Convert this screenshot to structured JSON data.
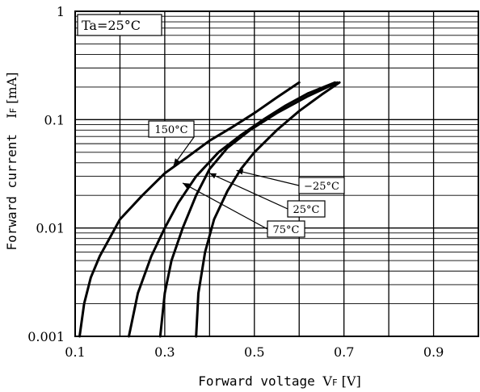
{
  "chart_data": {
    "type": "line",
    "title": "",
    "condition": "Ta=25°C",
    "xlabel": {
      "text": "Forward voltage ",
      "symbol": "V",
      "sub": "F",
      "unit": " [V]"
    },
    "ylabel": {
      "text": "Forward current  ",
      "symbol": "I",
      "sub": "F",
      "unit": " [mA]"
    },
    "xlim": [
      0.1,
      1.0
    ],
    "ylim": [
      0.001,
      1
    ],
    "yscale": "log",
    "grid": true,
    "x_ticks": [
      {
        "value": 0.1,
        "label": "0.1"
      },
      {
        "value": 0.3,
        "label": "0.3"
      },
      {
        "value": 0.5,
        "label": "0.5"
      },
      {
        "value": 0.7,
        "label": "0.7"
      },
      {
        "value": 0.9,
        "label": "0.9"
      }
    ],
    "y_ticks": [
      {
        "value": 0.001,
        "label": "0.001"
      },
      {
        "value": 0.01,
        "label": "0.01"
      },
      {
        "value": 0.1,
        "label": "0.1"
      },
      {
        "value": 1,
        "label": "1"
      }
    ],
    "series": [
      {
        "name": "150°C",
        "x": [
          0.11,
          0.12,
          0.135,
          0.155,
          0.2,
          0.25,
          0.3,
          0.35,
          0.4,
          0.45,
          0.5,
          0.55,
          0.6
        ],
        "y": [
          0.001,
          0.002,
          0.0035,
          0.0055,
          0.012,
          0.02,
          0.032,
          0.045,
          0.064,
          0.085,
          0.115,
          0.16,
          0.22
        ]
      },
      {
        "name": "75°C",
        "x": [
          0.22,
          0.24,
          0.27,
          0.3,
          0.33,
          0.37,
          0.42,
          0.47,
          0.52,
          0.57,
          0.62,
          0.68
        ],
        "y": [
          0.001,
          0.0025,
          0.0055,
          0.01,
          0.017,
          0.03,
          0.05,
          0.072,
          0.1,
          0.135,
          0.175,
          0.22
        ]
      },
      {
        "name": "25°C",
        "x": [
          0.29,
          0.3,
          0.315,
          0.34,
          0.37,
          0.4,
          0.44,
          0.49,
          0.55,
          0.62,
          0.685
        ],
        "y": [
          0.001,
          0.0025,
          0.005,
          0.01,
          0.02,
          0.035,
          0.055,
          0.08,
          0.115,
          0.165,
          0.22
        ]
      },
      {
        "name": "-25°C",
        "x": [
          0.37,
          0.375,
          0.39,
          0.41,
          0.44,
          0.47,
          0.5,
          0.55,
          0.6,
          0.65,
          0.69
        ],
        "y": [
          0.001,
          0.0025,
          0.006,
          0.012,
          0.022,
          0.035,
          0.05,
          0.08,
          0.12,
          0.17,
          0.22
        ]
      }
    ],
    "annotations": [
      {
        "series": "150°C",
        "label": "150°C"
      },
      {
        "series": "-25°C",
        "label": "−25°C"
      },
      {
        "series": "25°C",
        "label": "25°C"
      },
      {
        "series": "75°C",
        "label": "75°C"
      }
    ]
  }
}
